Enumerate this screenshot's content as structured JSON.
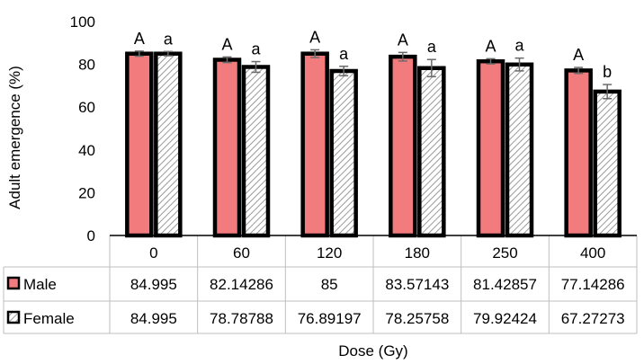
{
  "chart_data": {
    "type": "bar",
    "title": "",
    "xlabel": "Dose (Gy)",
    "ylabel": "Adult emergence (%)",
    "ylim": [
      0,
      100
    ],
    "yticks": [
      0,
      20,
      40,
      60,
      80,
      100
    ],
    "grid": false,
    "legend": "in data table (left column)",
    "categories": [
      "0",
      "60",
      "120",
      "180",
      "250",
      "400"
    ],
    "series": [
      {
        "name": "Male",
        "color": "#f27b7e",
        "values": [
          84.995,
          82.14286,
          85,
          83.57143,
          81.42857,
          77.14286
        ],
        "display_values": [
          "84.995",
          "82.14286",
          "85",
          "83.57143",
          "81.42857",
          "77.14286"
        ],
        "error": [
          1.2,
          1.3,
          1.8,
          2.0,
          1.2,
          1.4
        ],
        "letters": [
          "A",
          "A",
          "A",
          "A",
          "A",
          "A"
        ]
      },
      {
        "name": "Female",
        "color": "#ffffff",
        "pattern": "diagonal-hatch",
        "values": [
          84.995,
          78.78788,
          76.89197,
          78.25758,
          79.92424,
          67.27273
        ],
        "display_values": [
          "84.995",
          "78.78788",
          "76.89197",
          "78.25758",
          "79.92424",
          "67.27273"
        ],
        "error": [
          1.0,
          2.5,
          2.2,
          4.0,
          3.0,
          3.3
        ],
        "letters": [
          "a",
          "a",
          "a",
          "a",
          "a",
          "b"
        ]
      }
    ]
  }
}
